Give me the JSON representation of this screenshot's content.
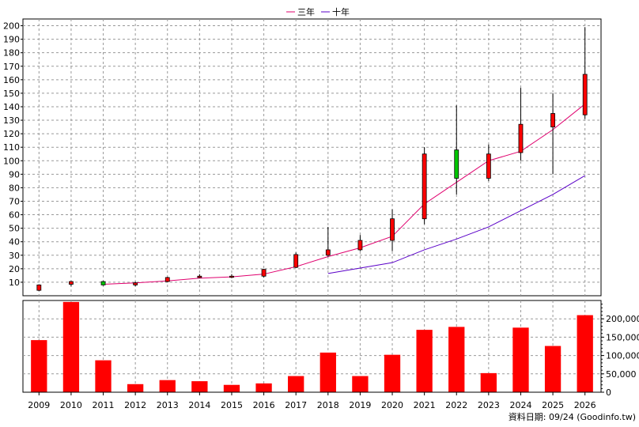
{
  "chart_data": [
    {
      "type": "candlestick",
      "legend": [
        {
          "name": "三年",
          "color": "#e0006e"
        },
        {
          "name": "十年",
          "color": "#5a00c8"
        }
      ],
      "legend_placement": "top-center",
      "x": [
        "2009",
        "2010",
        "2011",
        "2012",
        "2013",
        "2014",
        "2015",
        "2016",
        "2017",
        "2018",
        "2019",
        "2020",
        "2021",
        "2022",
        "2023",
        "2024",
        "2025",
        "2026"
      ],
      "ylim": [
        0,
        205
      ],
      "yticks": [
        10,
        20,
        30,
        40,
        50,
        60,
        70,
        80,
        90,
        100,
        110,
        120,
        130,
        140,
        150,
        160,
        170,
        180,
        190,
        200
      ],
      "grid": true,
      "candles": [
        {
          "x": "2009",
          "open": 8,
          "high": 8.5,
          "low": 3.5,
          "close": 4,
          "color": "#ff0000"
        },
        {
          "x": "2010",
          "open": 8.5,
          "high": 11,
          "low": 7,
          "close": 10.5,
          "color": "#ff0000"
        },
        {
          "x": "2011",
          "open": 10.5,
          "high": 11,
          "low": 7.5,
          "close": 8,
          "color": "#00c800"
        },
        {
          "x": "2012",
          "open": 8,
          "high": 10.5,
          "low": 7,
          "close": 9.5,
          "color": "#ff0000"
        },
        {
          "x": "2013",
          "open": 10.5,
          "high": 14,
          "low": 10,
          "close": 13.5,
          "color": "#ff0000"
        },
        {
          "x": "2014",
          "open": 13.5,
          "high": 16,
          "low": 13,
          "close": 14.5,
          "color": "#ff0000"
        },
        {
          "x": "2015",
          "open": 14,
          "high": 16,
          "low": 13,
          "close": 14.5,
          "color": "#ff0000"
        },
        {
          "x": "2016",
          "open": 14.5,
          "high": 20,
          "low": 13.5,
          "close": 19.5,
          "color": "#ff0000"
        },
        {
          "x": "2017",
          "open": 21,
          "high": 32,
          "low": 20.5,
          "close": 30.5,
          "color": "#ff0000"
        },
        {
          "x": "2018",
          "open": 30,
          "high": 51,
          "low": 29,
          "close": 34,
          "color": "#ff0000"
        },
        {
          "x": "2019",
          "open": 34,
          "high": 45,
          "low": 33,
          "close": 41,
          "color": "#ff0000"
        },
        {
          "x": "2020",
          "open": 41,
          "high": 64,
          "low": 33,
          "close": 57,
          "color": "#ff0000"
        },
        {
          "x": "2021",
          "open": 57,
          "high": 110,
          "low": 53,
          "close": 105,
          "color": "#ff0000"
        },
        {
          "x": "2022",
          "open": 108,
          "high": 141,
          "low": 75,
          "close": 87,
          "color": "#00c800"
        },
        {
          "x": "2023",
          "open": 87,
          "high": 112,
          "low": 85,
          "close": 105,
          "color": "#ff0000"
        },
        {
          "x": "2024",
          "open": 106,
          "high": 154,
          "low": 100,
          "close": 127,
          "color": "#ff0000"
        },
        {
          "x": "2025",
          "open": 125,
          "high": 150,
          "low": 90,
          "close": 135,
          "color": "#ff0000"
        },
        {
          "x": "2026",
          "open": 134,
          "high": 199,
          "low": 131,
          "close": 164,
          "color": "#ff0000"
        }
      ],
      "series": [
        {
          "name": "三年",
          "color": "#e0006e",
          "points": [
            {
              "x": "2011",
              "y": 8.5
            },
            {
              "x": "2012",
              "y": 9.5
            },
            {
              "x": "2013",
              "y": 11
            },
            {
              "x": "2014",
              "y": 13
            },
            {
              "x": "2015",
              "y": 14
            },
            {
              "x": "2016",
              "y": 16
            },
            {
              "x": "2017",
              "y": 21.5
            },
            {
              "x": "2018",
              "y": 29
            },
            {
              "x": "2019",
              "y": 35.5
            },
            {
              "x": "2020",
              "y": 44
            },
            {
              "x": "2021",
              "y": 68
            },
            {
              "x": "2022",
              "y": 84
            },
            {
              "x": "2023",
              "y": 100
            },
            {
              "x": "2024",
              "y": 107
            },
            {
              "x": "2025",
              "y": 123
            },
            {
              "x": "2026",
              "y": 142
            }
          ]
        },
        {
          "name": "十年",
          "color": "#5a00c8",
          "points": [
            {
              "x": "2018",
              "y": 16.5
            },
            {
              "x": "2019",
              "y": 20.5
            },
            {
              "x": "2020",
              "y": 24.5
            },
            {
              "x": "2021",
              "y": 34
            },
            {
              "x": "2022",
              "y": 42
            },
            {
              "x": "2023",
              "y": 51
            },
            {
              "x": "2024",
              "y": 63
            },
            {
              "x": "2025",
              "y": 75
            },
            {
              "x": "2026",
              "y": 89
            }
          ]
        }
      ]
    },
    {
      "type": "bar",
      "categories": [
        "2009",
        "2010",
        "2011",
        "2012",
        "2013",
        "2014",
        "2015",
        "2016",
        "2017",
        "2018",
        "2019",
        "2020",
        "2021",
        "2022",
        "2023",
        "2024",
        "2025",
        "2026"
      ],
      "values": [
        142000,
        246000,
        87000,
        22000,
        33000,
        30000,
        20000,
        24000,
        44000,
        108000,
        44000,
        102000,
        170000,
        178000,
        52000,
        176000,
        126000,
        210000
      ],
      "color": "#ff0000",
      "ylim": [
        0,
        250000
      ],
      "yticks": [
        0,
        50000,
        100000,
        150000,
        200000
      ],
      "ytick_labels": [
        "0",
        "50,000",
        "100,000",
        "150,000",
        "200,000"
      ],
      "grid": true
    }
  ],
  "footer": {
    "text": "資料日期: 09/24  (Goodinfo.tw)"
  }
}
